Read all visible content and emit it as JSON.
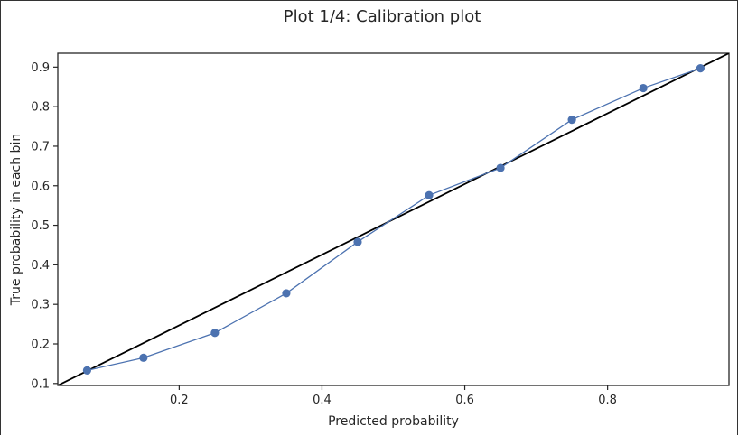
{
  "chart_data": {
    "type": "line",
    "title": "Plot 1/4: Calibration plot",
    "xlabel": "Predicted probability",
    "ylabel": "True probability in each bin",
    "xlim": [
      0.03,
      0.97
    ],
    "ylim": [
      0.095,
      0.935
    ],
    "x_ticks": [
      0.2,
      0.4,
      0.6,
      0.8
    ],
    "y_ticks": [
      0.1,
      0.2,
      0.3,
      0.4,
      0.5,
      0.6,
      0.7,
      0.8,
      0.9
    ],
    "x_tick_labels": [
      "0.2",
      "0.4",
      "0.6",
      "0.8"
    ],
    "y_tick_labels": [
      "0.1",
      "0.2",
      "0.3",
      "0.4",
      "0.5",
      "0.6",
      "0.7",
      "0.8",
      "0.9"
    ],
    "grid": false,
    "series": [
      {
        "color": "#4c72b0",
        "x": [
          0.071,
          0.15,
          0.25,
          0.35,
          0.45,
          0.55,
          0.65,
          0.75,
          0.85,
          0.93
        ],
        "y": [
          0.133,
          0.165,
          0.228,
          0.328,
          0.458,
          0.576,
          0.645,
          0.767,
          0.847,
          0.897
        ]
      }
    ],
    "reference_line": {
      "x": [
        0.03,
        0.97
      ],
      "y": [
        0.095,
        0.935
      ],
      "color": "#000000"
    }
  }
}
